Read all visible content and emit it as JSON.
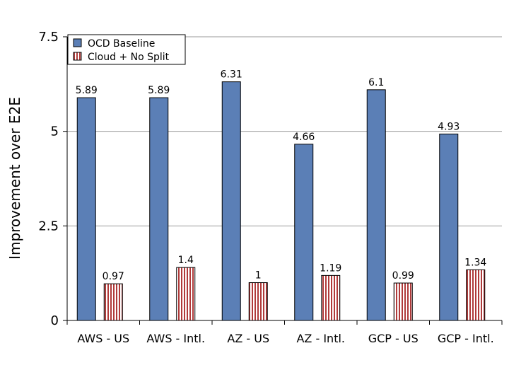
{
  "chart_data": {
    "type": "bar",
    "categories": [
      "AWS - US",
      "AWS - Intl.",
      "AZ - US",
      "AZ - Intl.",
      "GCP - US",
      "GCP - Intl."
    ],
    "series": [
      {
        "name": "OCD Baseline",
        "values": [
          5.89,
          5.89,
          6.31,
          4.66,
          6.1,
          4.93
        ],
        "labels": [
          "5.89",
          "5.89",
          "6.31",
          "4.66",
          "6.1",
          "4.93"
        ],
        "color": "#5b7fb6",
        "pattern": "solid"
      },
      {
        "name": "Cloud + No Split",
        "values": [
          0.97,
          1.4,
          1,
          1.19,
          0.99,
          1.34
        ],
        "labels": [
          "0.97",
          "1.4",
          "1",
          "1.19",
          "0.99",
          "1.34"
        ],
        "color": "#c0392b",
        "pattern": "vertical-stripes"
      }
    ],
    "title": "",
    "xlabel": "",
    "ylabel": "Improvement over E2E",
    "ylim": [
      0,
      7.5
    ],
    "yticks": [
      0,
      2.5,
      5,
      7.5
    ],
    "ytick_labels": [
      "0",
      "2.5",
      "5",
      "7.5"
    ],
    "grid": true,
    "legend_position": "top-left"
  }
}
